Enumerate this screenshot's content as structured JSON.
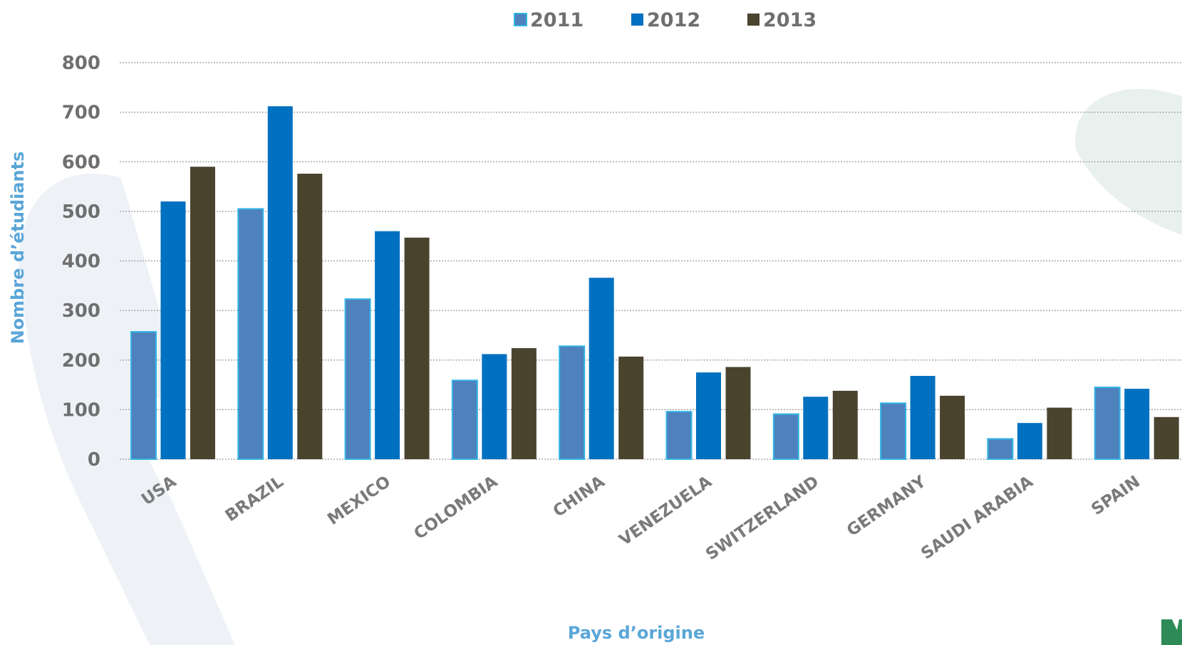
{
  "chart_data": {
    "type": "bar",
    "categories": [
      "USA",
      "BRAZIL",
      "MEXICO",
      "COLOMBIA",
      "CHINA",
      "VENEZUELA",
      "SWITZERLAND",
      "GERMANY",
      "SAUDI ARABIA",
      "SPAIN"
    ],
    "series": [
      {
        "name": "2011",
        "color": "#4f81bd",
        "values": [
          257,
          505,
          323,
          159,
          228,
          96,
          91,
          113,
          41,
          145
        ]
      },
      {
        "name": "2012",
        "color": "#0070c0",
        "values": [
          520,
          712,
          460,
          212,
          366,
          175,
          126,
          168,
          73,
          142
        ]
      },
      {
        "name": "2013",
        "color": "#4a432e",
        "values": [
          590,
          576,
          447,
          224,
          207,
          186,
          138,
          128,
          104,
          85
        ]
      }
    ],
    "xlabel": "Pays d’origine",
    "ylabel": "Nombre d’étudiants",
    "ylim": [
      0,
      800
    ],
    "yticks": [
      0,
      100,
      200,
      300,
      400,
      500,
      600,
      700,
      800
    ],
    "grid": true,
    "legend": "top-center",
    "colors": {
      "bar_edge_2011": "#33b5e5",
      "axis_title": "#5aa6d8",
      "tick_text": "#6f6f6f",
      "background_watermark": "#e9f1ee"
    }
  }
}
